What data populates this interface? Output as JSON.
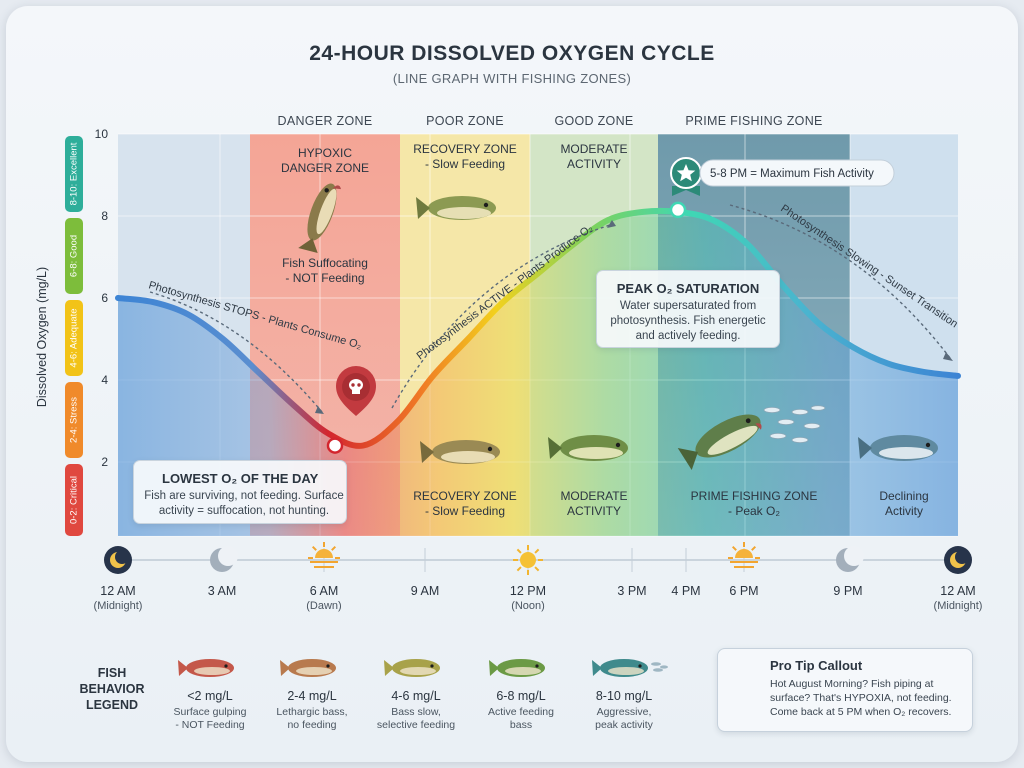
{
  "title": "24-HOUR DISSOLVED OXYGEN CYCLE",
  "subtitle": "(LINE GRAPH WITH FISHING ZONES)",
  "zone_headers": [
    "DANGER ZONE",
    "POOR ZONE",
    "GOOD ZONE",
    "PRIME FISHING ZONE"
  ],
  "y_axis": {
    "label": "Dissolved Oxygen (mg/L)",
    "ticks": [
      "10",
      "8",
      "6",
      "4",
      "2"
    ],
    "bands": [
      {
        "label": "8-10: Excellent",
        "color": "#2eae9a"
      },
      {
        "label": "6-8: Good",
        "color": "#7dbd3b"
      },
      {
        "label": "4-6: Adequate",
        "color": "#f2c318"
      },
      {
        "label": "2-4: Stress",
        "color": "#f08a2a"
      },
      {
        "label": "0-2: Critical",
        "color": "#e0483f"
      }
    ]
  },
  "zones": {
    "danger_top": [
      "HYPOXIC",
      "DANGER ZONE"
    ],
    "danger_bottom": [
      "Fish Suffocating",
      "- NOT Feeding"
    ],
    "recovery_top": [
      "RECOVERY ZONE",
      "- Slow Feeding"
    ],
    "recovery_bottom": [
      "RECOVERY ZONE",
      "- Slow Feeding"
    ],
    "moderate_top": [
      "MODERATE",
      "ACTIVITY"
    ],
    "moderate_bottom": [
      "MODERATE",
      "ACTIVITY"
    ],
    "prime_bottom": [
      "PRIME FISHING ZONE",
      "- Peak O₂"
    ],
    "declining": [
      "Declining",
      "Activity"
    ]
  },
  "annotations": {
    "stops": "Photosynthesis STOPS - Plants Consume O₂",
    "active": "Photosynthesis ACTIVE - Plants Produce O₂",
    "slowing": "Photosynthesis Slowing - Sunset Transition",
    "max_activity": "5-8 PM = Maximum Fish Activity",
    "lowest_title": "LOWEST O₂ OF THE DAY",
    "lowest_body": [
      "Fish are surviving, not feeding. Surface",
      "activity = suffocation, not hunting."
    ],
    "peak_title": "PEAK O₂ SATURATION",
    "peak_body": [
      "Water supersaturated from",
      "photosynthesis. Fish energetic",
      "and actively feeding."
    ]
  },
  "colors": {
    "danger": "#f3a89a",
    "poor": "#f5e7a6",
    "good": "#d5e6c6",
    "prime": "#7ea7b7",
    "late": "#c9dcec",
    "line_low": "#d3262e",
    "line_high": "#3fd7b4",
    "line_night": "#3d84d4"
  },
  "chart_data": {
    "type": "line",
    "title": "24-HOUR DISSOLVED OXYGEN CYCLE",
    "ylabel": "Dissolved Oxygen (mg/L)",
    "ylim": [
      0,
      10
    ],
    "x_hours": [
      0,
      1,
      2,
      3,
      4,
      5,
      6,
      7,
      8,
      9,
      10,
      11,
      12,
      13,
      14,
      15,
      16,
      17,
      18,
      19,
      20,
      21,
      22,
      23,
      24
    ],
    "values": [
      6.0,
      5.9,
      5.6,
      5.0,
      4.2,
      3.4,
      2.7,
      2.4,
      3.0,
      4.1,
      5.0,
      5.9,
      6.6,
      7.3,
      7.9,
      8.1,
      8.1,
      7.9,
      7.3,
      6.3,
      5.4,
      4.8,
      4.4,
      4.2,
      4.1
    ],
    "min_point": {
      "hour": 7,
      "value": 2.4
    },
    "peak_point": {
      "hour": 16,
      "value": 8.1
    },
    "grid": true
  },
  "timeline": [
    {
      "hour": 0,
      "label": "12 AM",
      "sub": "(Midnight)",
      "icon": "moon-icon"
    },
    {
      "hour": 3,
      "label": "3 AM",
      "sub": "",
      "icon": "crescent-icon"
    },
    {
      "hour": 6,
      "label": "6 AM",
      "sub": "(Dawn)",
      "icon": "sunrise-icon"
    },
    {
      "hour": 9,
      "label": "9 AM",
      "sub": "",
      "icon": ""
    },
    {
      "hour": 12,
      "label": "12 PM",
      "sub": "(Noon)",
      "icon": "sun-icon"
    },
    {
      "hour": 15,
      "label": "3 PM",
      "sub": "",
      "icon": ""
    },
    {
      "hour": 16,
      "label": "4 PM",
      "sub": "",
      "icon": ""
    },
    {
      "hour": 18,
      "label": "6 PM",
      "sub": "",
      "icon": "sunset-icon"
    },
    {
      "hour": 21,
      "label": "9 PM",
      "sub": "",
      "icon": "crescent-icon"
    },
    {
      "hour": 24,
      "label": "12 AM",
      "sub": "(Midnight)",
      "icon": "moon-icon"
    }
  ],
  "legend": {
    "title": [
      "FISH",
      "BEHAVIOR",
      "LEGEND"
    ],
    "items": [
      {
        "range": "<2 mg/L",
        "desc": [
          "Surface gulping",
          "- NOT Feeding"
        ],
        "fish_color": "#c4584a"
      },
      {
        "range": "2-4 mg/L",
        "desc": [
          "Lethargic bass,",
          "no feeding"
        ],
        "fish_color": "#b87a4e"
      },
      {
        "range": "4-6 mg/L",
        "desc": [
          "Bass slow,",
          "selective feeding"
        ],
        "fish_color": "#a8a24a"
      },
      {
        "range": "6-8 mg/L",
        "desc": [
          "Active feeding",
          "bass"
        ],
        "fish_color": "#6b9a45"
      },
      {
        "range": "8-10 mg/L",
        "desc": [
          "Aggressive,",
          "peak activity"
        ],
        "fish_color": "#3f8a8c"
      }
    ]
  },
  "protip": {
    "title": "Pro Tip Callout",
    "body": [
      "Hot August Morning? Fish piping at",
      "surface? That's HYPOXIA, not feeding.",
      "Come back at 5 PM when O₂ recovers."
    ]
  }
}
